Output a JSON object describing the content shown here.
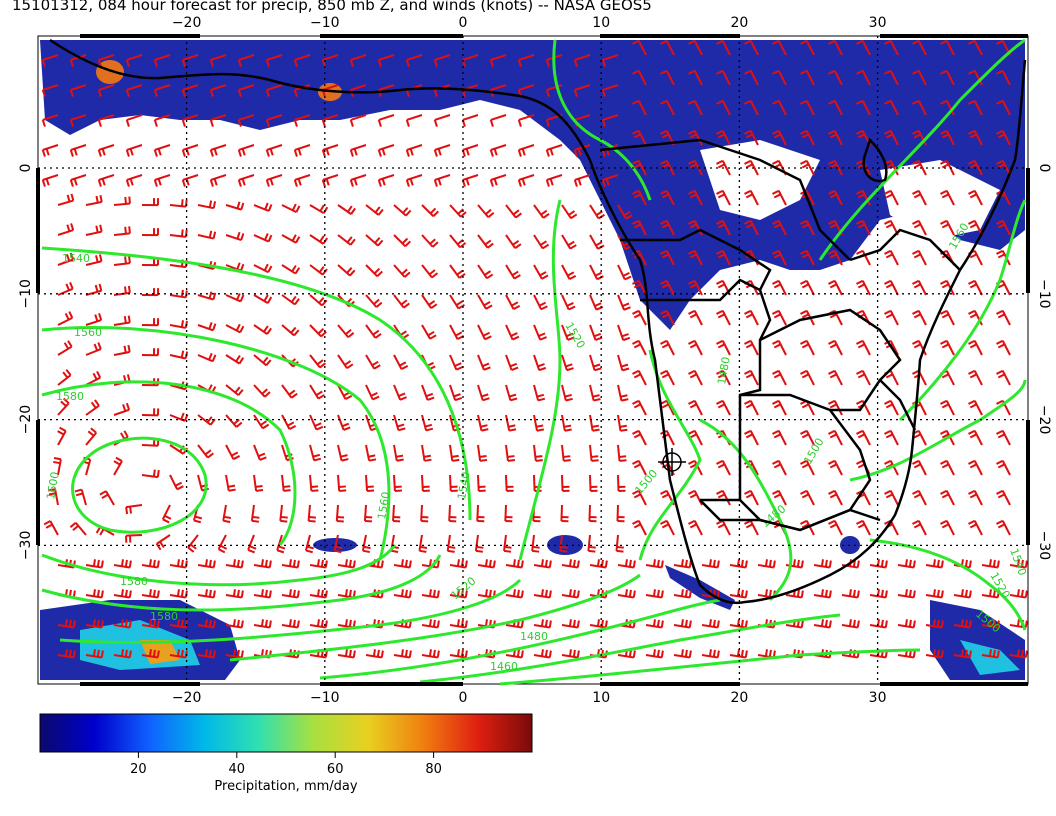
{
  "title": "15101312, 084 hour forecast for precip, 850 mb Z, and winds (knots) -- NASA GEOS5",
  "map": {
    "lon_ticks": [
      -20,
      -10,
      0,
      10,
      20,
      30
    ],
    "lat_ticks": [
      0,
      -10,
      -20,
      -30
    ],
    "lon_labels": [
      "−20",
      "−10",
      "0",
      "10",
      "20",
      "30"
    ],
    "lat_labels": [
      "0",
      "−10",
      "−20",
      "−30"
    ],
    "contour_labels": [
      "1540",
      "1560",
      "1580",
      "1600",
      "1580",
      "1560",
      "1540",
      "1520",
      "1520",
      "1500",
      "1480",
      "1460",
      "1480",
      "1500",
      "1520",
      "1500",
      "1480",
      "1540",
      "1560",
      "1580"
    ],
    "colors": {
      "precip_low": "#1e2aa8",
      "contour": "#2ee82e",
      "wind_barb": "#e01010",
      "coast": "#000000",
      "grid": "#000000"
    }
  },
  "colorbar": {
    "ticks": [
      "20",
      "40",
      "60",
      "80"
    ],
    "label": "Precipitation, mm/day",
    "stops": [
      "#0a0a6e",
      "#0000cc",
      "#1060ff",
      "#00b8e8",
      "#30e0b0",
      "#a8e040",
      "#e8d020",
      "#f08010",
      "#e02010",
      "#7a0a0a"
    ]
  }
}
